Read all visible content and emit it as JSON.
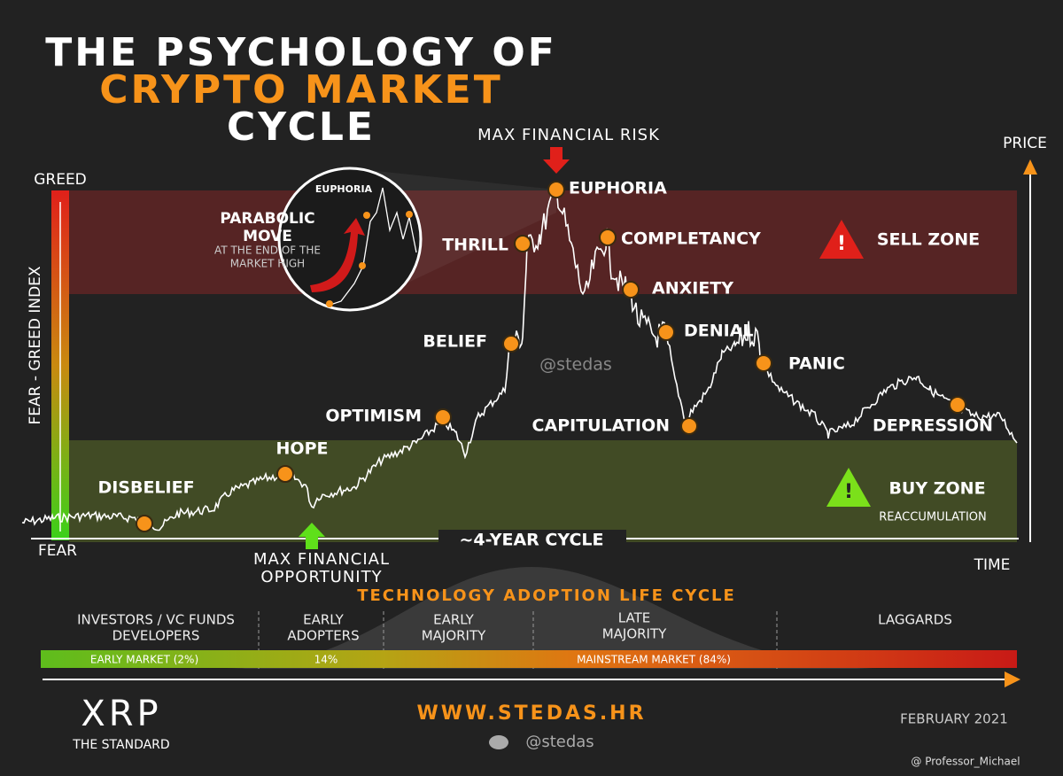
{
  "title": [
    "THE PSYCHOLOGY OF",
    "CRYPTO MARKET",
    "CYCLE"
  ],
  "axes": {
    "price": "PRICE",
    "time": "TIME",
    "greed": "GREED",
    "fear": "FEAR",
    "index": "FEAR - GREED INDEX"
  },
  "max_risk": "MAX FINANCIAL RISK",
  "max_opportunity": [
    "MAX FINANCIAL",
    "OPPORTUNITY"
  ],
  "stages": [
    "DISBELIEF",
    "HOPE",
    "OPTIMISM",
    "BELIEF",
    "THRILL",
    "EUPHORIA",
    "COMPLETANCY",
    "ANXIETY",
    "DENIAL",
    "CAPITULATION",
    "PANIC",
    "DEPRESSION"
  ],
  "zones": {
    "sell": "SELL ZONE",
    "buy": "BUY ZONE",
    "buy_note": "REACCUMULATION"
  },
  "inset": {
    "label": "EUPHORIA",
    "heading": [
      "PARABOLIC",
      "MOVE"
    ],
    "note": [
      "AT THE END OF THE",
      "MARKET HIGH"
    ]
  },
  "watermark": "@stedas",
  "cycle": "~4-YEAR CYCLE",
  "adoption": {
    "title": "TECHNOLOGY ADOPTION LIFE CYCLE",
    "groups": [
      [
        "INVESTORS / VC FUNDS",
        "DEVELOPERS"
      ],
      [
        "EARLY",
        "ADOPTERS"
      ],
      [
        "EARLY",
        "MAJORITY"
      ],
      [
        "LATE",
        "MAJORITY"
      ],
      [
        "LAGGARDS"
      ]
    ],
    "segments": [
      "EARLY MARKET (2%)",
      "14%",
      "MAINSTREAM MARKET (84%)"
    ]
  },
  "footer": {
    "brand": "XRP",
    "tagline": "THE STANDARD",
    "site": "WWW.STEDAS.HR",
    "handle": "@stedas",
    "date": "FEBRUARY 2021",
    "credit": "@ Professor_Michael"
  }
}
